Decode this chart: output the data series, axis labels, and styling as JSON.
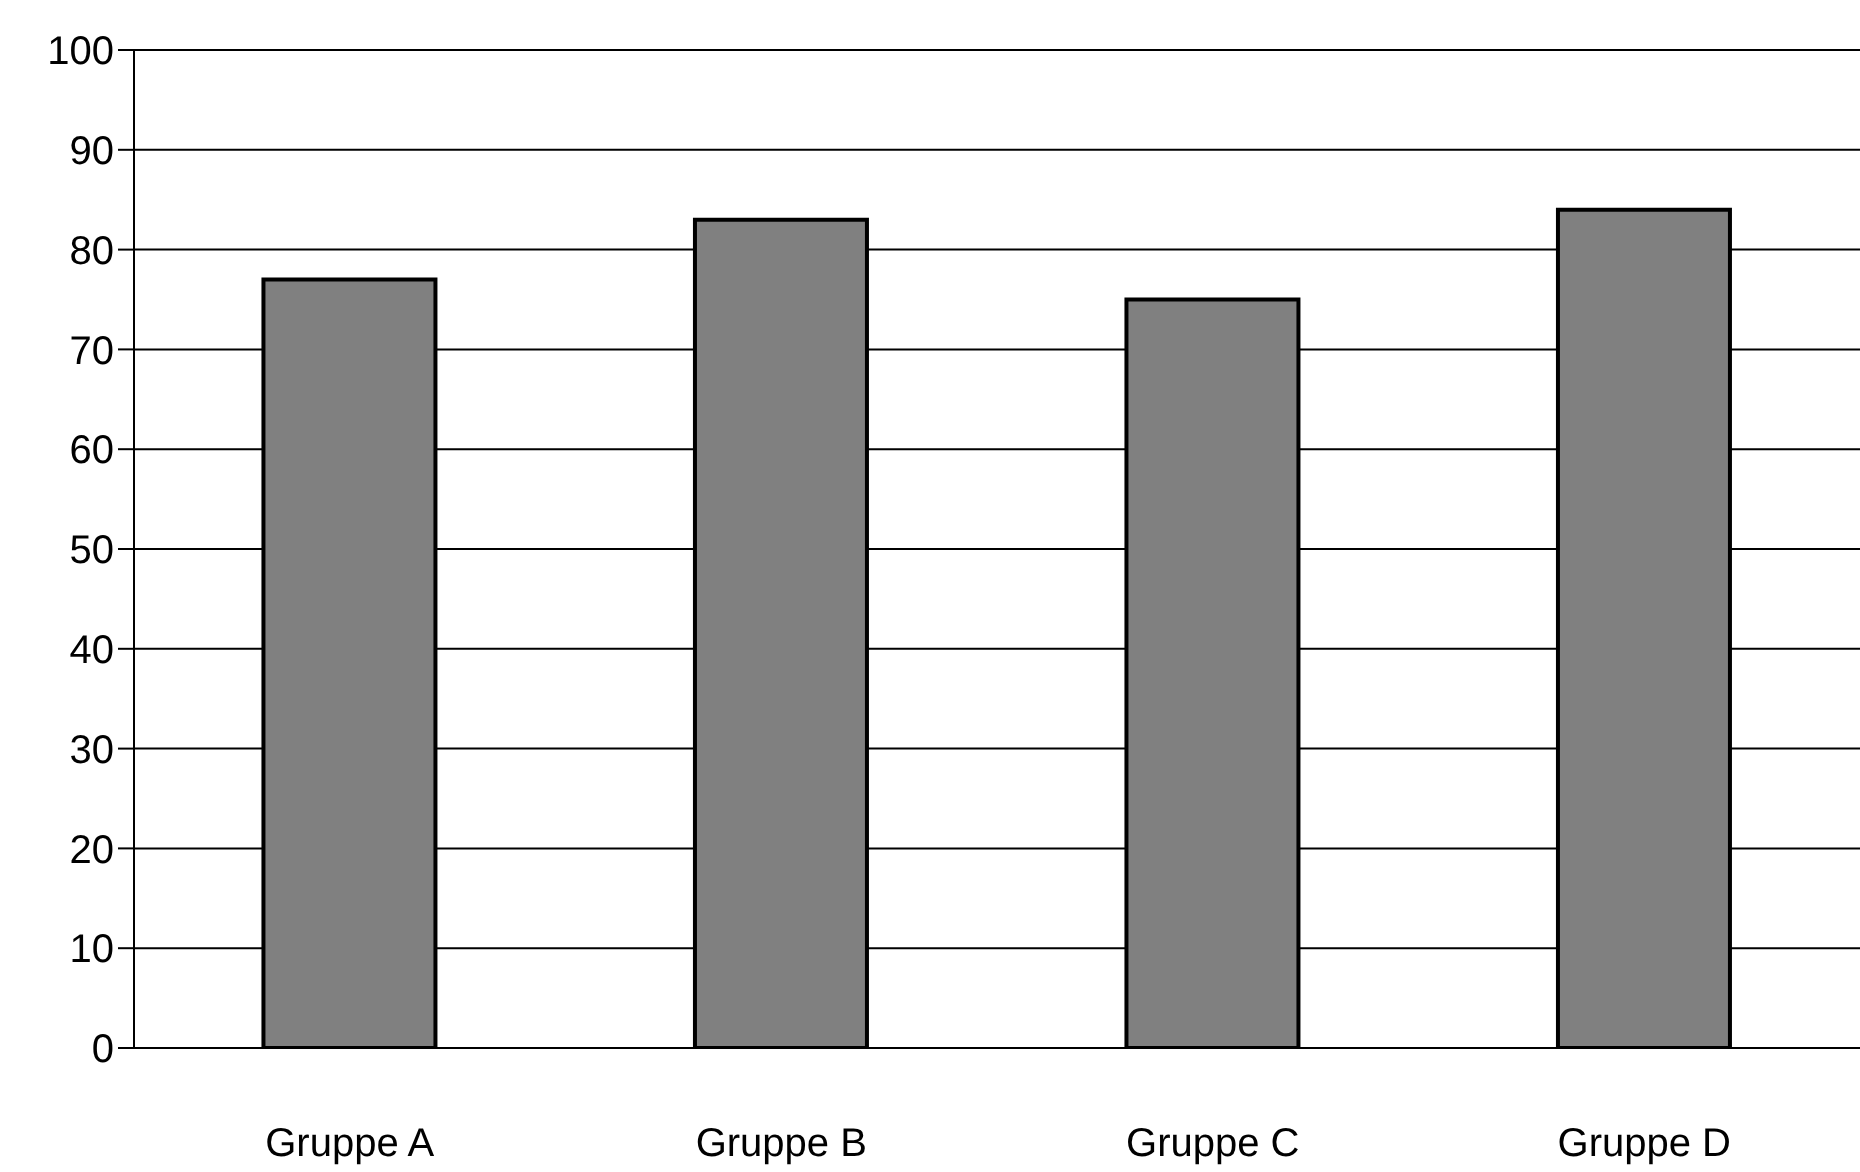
{
  "chart_data": {
    "type": "bar",
    "categories": [
      "Gruppe A",
      "Gruppe B",
      "Gruppe C",
      "Gruppe D"
    ],
    "values": [
      77,
      83,
      75,
      84
    ],
    "color": "#808080",
    "ylim": [
      0,
      100
    ],
    "yticks": [
      0,
      10,
      20,
      30,
      40,
      50,
      60,
      70,
      80,
      90,
      100
    ],
    "grid": "y"
  }
}
